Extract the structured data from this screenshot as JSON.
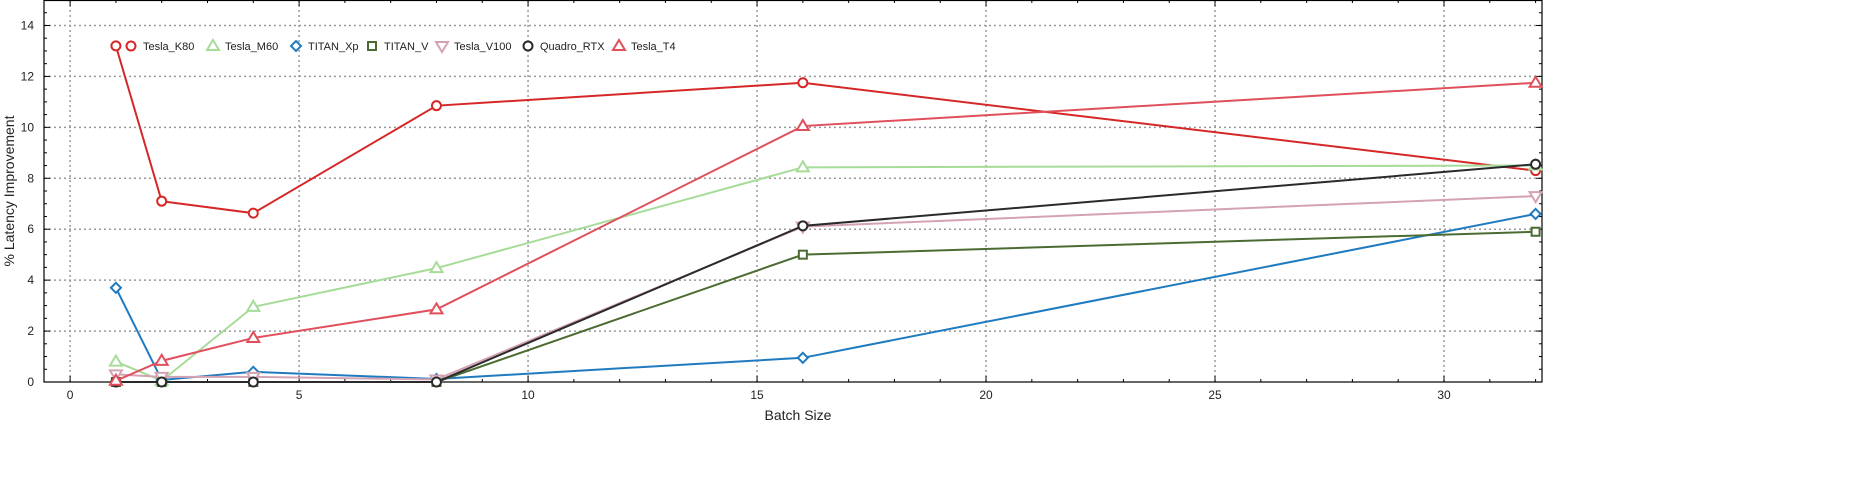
{
  "chart_data": {
    "type": "line",
    "title": "",
    "xlabel": "Batch Size",
    "ylabel": "% Latency Improvement",
    "xlim": [
      -0.57,
      32.14
    ],
    "ylim": [
      0,
      15
    ],
    "xticks": [
      0,
      5,
      10,
      15,
      20,
      25,
      30
    ],
    "yticks": [
      0,
      2,
      4,
      6,
      8,
      10,
      12,
      14
    ],
    "grid": true,
    "legend_position": "top-left",
    "x": [
      1,
      2,
      4,
      8,
      16,
      32
    ],
    "series": [
      {
        "name": "Tesla_K80",
        "color": "#d62728",
        "marker": "circle",
        "values": [
          13.2,
          7.1,
          6.63,
          10.85,
          11.75,
          8.3
        ]
      },
      {
        "name": "Tesla_M60",
        "color": "#a6dc98",
        "marker": "triangle-up",
        "values": [
          0.8,
          0.05,
          2.95,
          4.47,
          8.43,
          8.5
        ]
      },
      {
        "name": "TITAN_Xp",
        "color": "#1f7bbf",
        "marker": "diamond",
        "values": [
          3.7,
          0.08,
          0.4,
          0.12,
          0.95,
          6.6
        ]
      },
      {
        "name": "TITAN_V",
        "color": "#4a6b32",
        "marker": "square",
        "values": [
          0.0,
          0.0,
          0.0,
          0.0,
          5.0,
          5.9
        ]
      },
      {
        "name": "Tesla_V100",
        "color": "#d4a3b3",
        "marker": "triangle-down",
        "values": [
          0.3,
          0.2,
          0.2,
          0.1,
          6.1,
          7.3
        ]
      },
      {
        "name": "Quadro_RTX",
        "color": "#2a2a2a",
        "marker": "circle",
        "values": [
          0.0,
          0.0,
          0.0,
          0.0,
          6.13,
          8.55
        ]
      },
      {
        "name": "Tesla_T4",
        "color": "#e0505c",
        "marker": "triangle-up",
        "values": [
          0.05,
          0.83,
          1.73,
          2.85,
          10.05,
          11.75
        ]
      }
    ]
  }
}
